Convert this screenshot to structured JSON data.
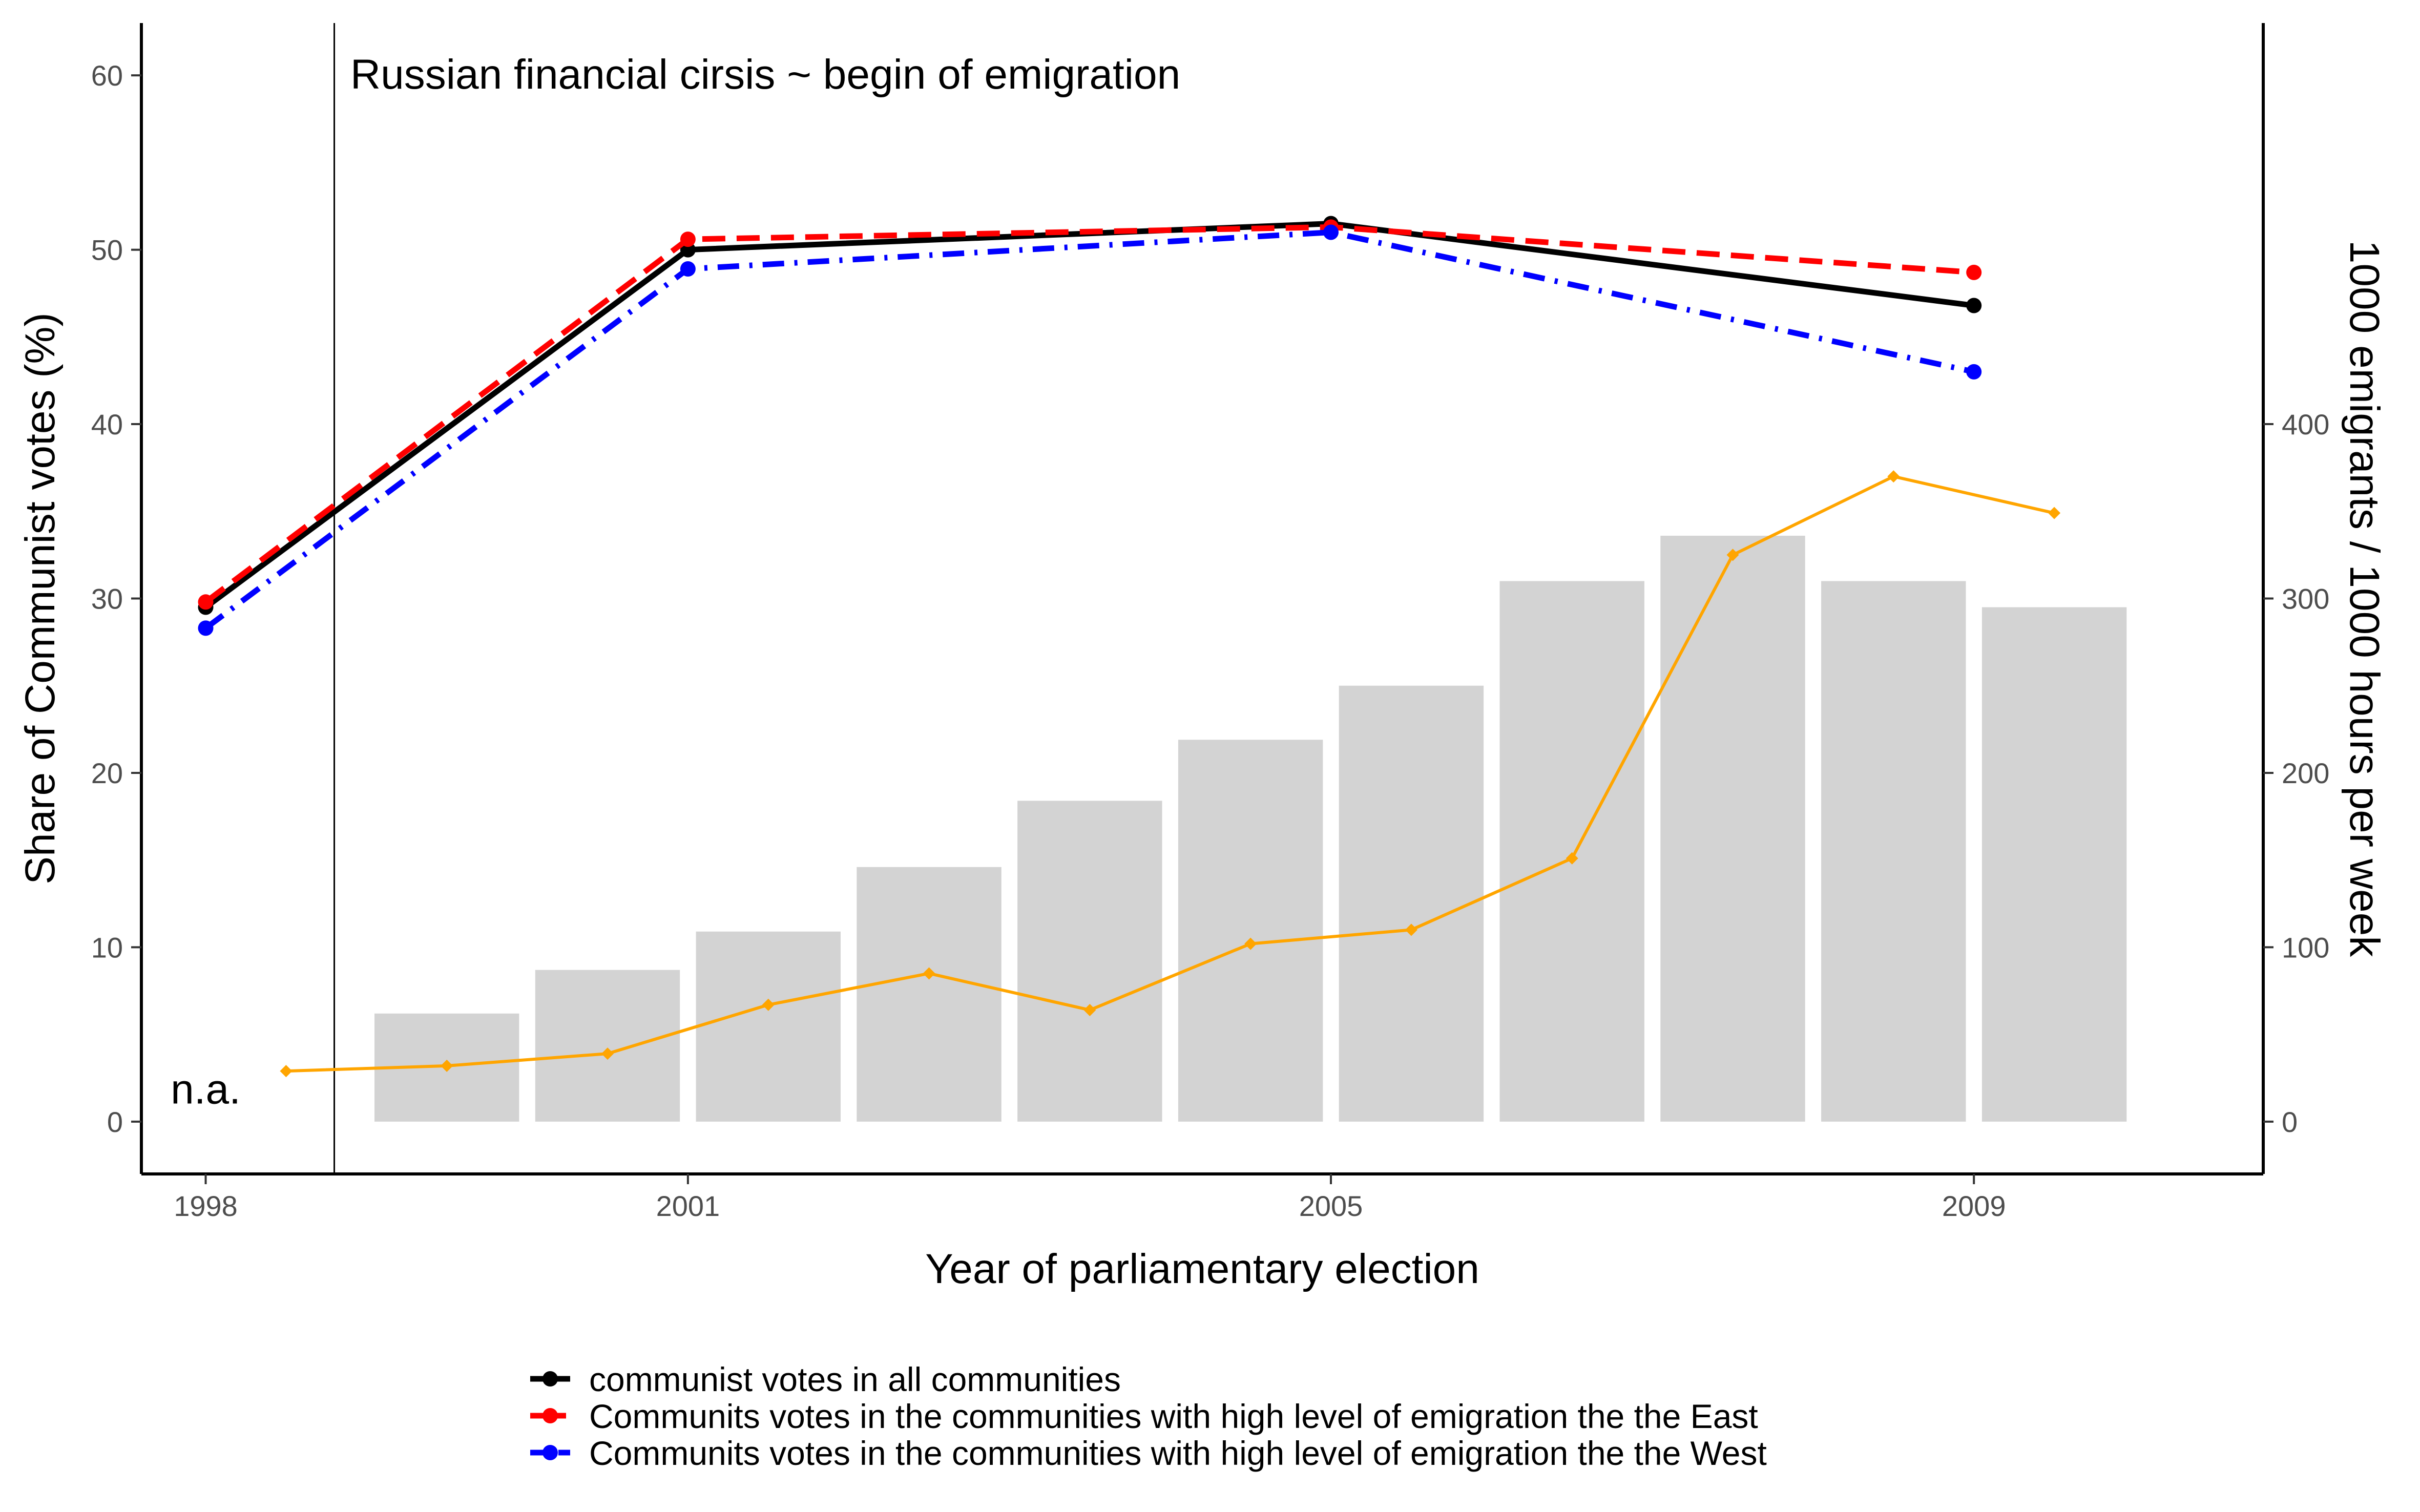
{
  "chart_data": {
    "type": "line",
    "title": "",
    "xlabel": "Year of parliamentary election",
    "ylabel": "Share of Communist votes (%)",
    "y2label": "1000 emigrants / 1000 hours per week",
    "xlim": [
      1997.6,
      2010.8
    ],
    "ylim": [
      -3,
      63
    ],
    "y2lim": [
      -30,
      630
    ],
    "x_ticks": [
      1998,
      2001,
      2005,
      2009
    ],
    "y_ticks": [
      0,
      10,
      20,
      30,
      40,
      50,
      60
    ],
    "y2_ticks": [
      0,
      100,
      200,
      300,
      400
    ],
    "grid": false,
    "legend_position": "bottom",
    "series": [
      {
        "name": "communist votes in all communities",
        "axis": "left",
        "color": "#000000",
        "linestyle": "solid",
        "x": [
          1998,
          2001,
          2005,
          2009
        ],
        "values": [
          29.5,
          50.0,
          51.5,
          46.8
        ]
      },
      {
        "name": "Communits votes in the communities with high level of emigration the the East",
        "axis": "left",
        "color": "#ff0000",
        "linestyle": "dashed",
        "x": [
          1998,
          2001,
          2005,
          2009
        ],
        "values": [
          29.8,
          50.6,
          51.3,
          48.7
        ]
      },
      {
        "name": "Communits votes in the communities with high level of emigration the the West",
        "axis": "left",
        "color": "#0000ff",
        "linestyle": "dashdot",
        "x": [
          1998,
          2001,
          2005,
          2009
        ],
        "values": [
          28.3,
          48.9,
          51.0,
          43.0
        ]
      }
    ],
    "bars": {
      "axis": "right",
      "color": "#d3d3d3",
      "x": [
        1999.5,
        2000.5,
        2001.5,
        2002.5,
        2003.5,
        2004.5,
        2005.5,
        2006.5,
        2007.5,
        2008.5,
        2009.5
      ],
      "values": [
        62,
        87,
        109,
        146,
        184,
        219,
        250,
        310,
        336,
        310,
        295
      ]
    },
    "orange_line": {
      "axis": "right",
      "color": "#ffa500",
      "marker": "diamond",
      "x": [
        1998.5,
        1999.5,
        2000.5,
        2001.5,
        2002.5,
        2003.5,
        2004.5,
        2005.5,
        2006.5,
        2007.5,
        2008.5,
        2009.5
      ],
      "values": [
        29,
        32,
        39,
        67,
        85,
        64,
        102,
        110,
        151,
        325,
        370,
        349
      ]
    },
    "vline": {
      "x": 1998.8
    },
    "annotations": [
      {
        "text": "Russian financial cirsis ~ begin of emigration",
        "x": 1998.9,
        "y": 60
      },
      {
        "text": "n.a.",
        "x": 1998.0,
        "y": 1.8
      }
    ]
  }
}
